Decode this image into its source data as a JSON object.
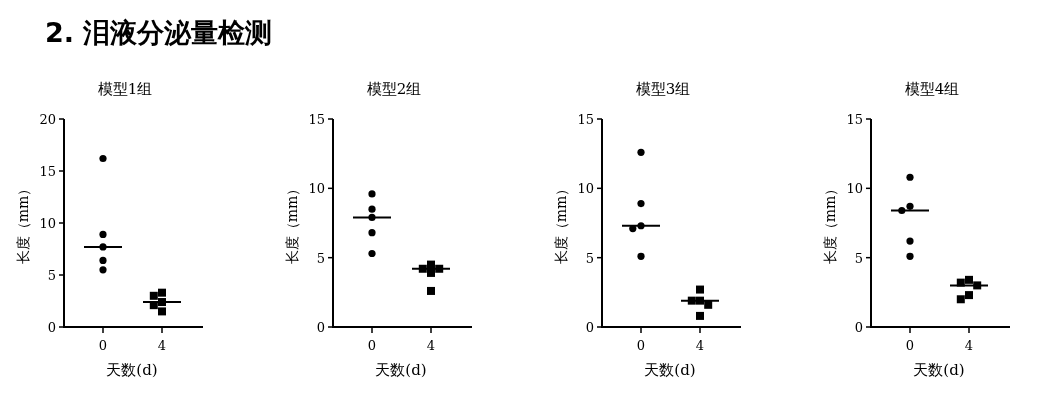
{
  "chart_data": [
    {
      "type": "other",
      "title": "2. 泪液分泌量检测"
    },
    {
      "type": "scatter",
      "title": "模型1组",
      "xlabel": "天数(d)",
      "ylabel": "长度（mm）",
      "categories": [
        "0",
        "4"
      ],
      "ylim": [
        0,
        20
      ],
      "yticks": [
        0,
        5,
        10,
        15,
        20
      ],
      "series": [
        {
          "x": [
            "0",
            "0",
            "0",
            "0",
            "0"
          ],
          "values": [
            16.2,
            8.9,
            7.7,
            6.4,
            5.5
          ],
          "color": "#000000",
          "marker": "circle"
        },
        {
          "x": [
            "4",
            "4",
            "4",
            "4",
            "4"
          ],
          "values": [
            3.3,
            3.0,
            2.4,
            2.1,
            1.5
          ],
          "color": "#000000",
          "marker": "square"
        }
      ],
      "ref_lines": [
        {
          "axis": "y",
          "value": 7.7,
          "color": "#000000"
        },
        {
          "axis": "y",
          "value": 2.4,
          "color": "#000000"
        }
      ]
    },
    {
      "type": "scatter",
      "title": "模型2组",
      "xlabel": "天数(d)",
      "ylabel": "长度（mm）",
      "categories": [
        "0",
        "4"
      ],
      "ylim": [
        0,
        15
      ],
      "yticks": [
        0,
        5,
        10,
        15
      ],
      "series": [
        {
          "x": [
            "0",
            "0",
            "0",
            "0",
            "0"
          ],
          "values": [
            9.6,
            8.5,
            7.9,
            6.8,
            5.3
          ],
          "color": "#000000",
          "marker": "circle"
        },
        {
          "x": [
            "4",
            "4",
            "4",
            "4",
            "4"
          ],
          "values": [
            4.5,
            4.2,
            4.2,
            3.9,
            2.6
          ],
          "color": "#000000",
          "marker": "square"
        }
      ],
      "ref_lines": [
        {
          "axis": "y",
          "value": 7.9,
          "color": "#000000"
        },
        {
          "axis": "y",
          "value": 4.2,
          "color": "#000000"
        }
      ]
    },
    {
      "type": "scatter",
      "title": "模型3组",
      "xlabel": "天数(d)",
      "ylabel": "长度（mm）",
      "categories": [
        "0",
        "4"
      ],
      "ylim": [
        0,
        15
      ],
      "yticks": [
        0,
        5,
        10,
        15
      ],
      "series": [
        {
          "x": [
            "0",
            "0",
            "0",
            "0",
            "0"
          ],
          "values": [
            12.6,
            8.9,
            7.3,
            7.1,
            5.1
          ],
          "color": "#000000",
          "marker": "circle"
        },
        {
          "x": [
            "4",
            "4",
            "4",
            "4",
            "4"
          ],
          "values": [
            2.7,
            1.9,
            1.9,
            1.6,
            0.8
          ],
          "color": "#000000",
          "marker": "square"
        }
      ],
      "ref_lines": [
        {
          "axis": "y",
          "value": 7.3,
          "color": "#000000"
        },
        {
          "axis": "y",
          "value": 1.9,
          "color": "#000000"
        }
      ]
    },
    {
      "type": "scatter",
      "title": "模型4组",
      "xlabel": "天数(d)",
      "ylabel": "长度（mm）",
      "categories": [
        "0",
        "4"
      ],
      "ylim": [
        0,
        15
      ],
      "yticks": [
        0,
        5,
        10,
        15
      ],
      "series": [
        {
          "x": [
            "0",
            "0",
            "0",
            "0",
            "0"
          ],
          "values": [
            10.8,
            8.7,
            8.4,
            6.2,
            5.1
          ],
          "color": "#000000",
          "marker": "circle"
        },
        {
          "x": [
            "4",
            "4",
            "4",
            "4",
            "4"
          ],
          "values": [
            3.4,
            3.2,
            3.0,
            2.3,
            2.0
          ],
          "color": "#000000",
          "marker": "square"
        }
      ],
      "ref_lines": [
        {
          "axis": "y",
          "value": 8.4,
          "color": "#000000"
        },
        {
          "axis": "y",
          "value": 3.0,
          "color": "#000000"
        }
      ]
    }
  ]
}
